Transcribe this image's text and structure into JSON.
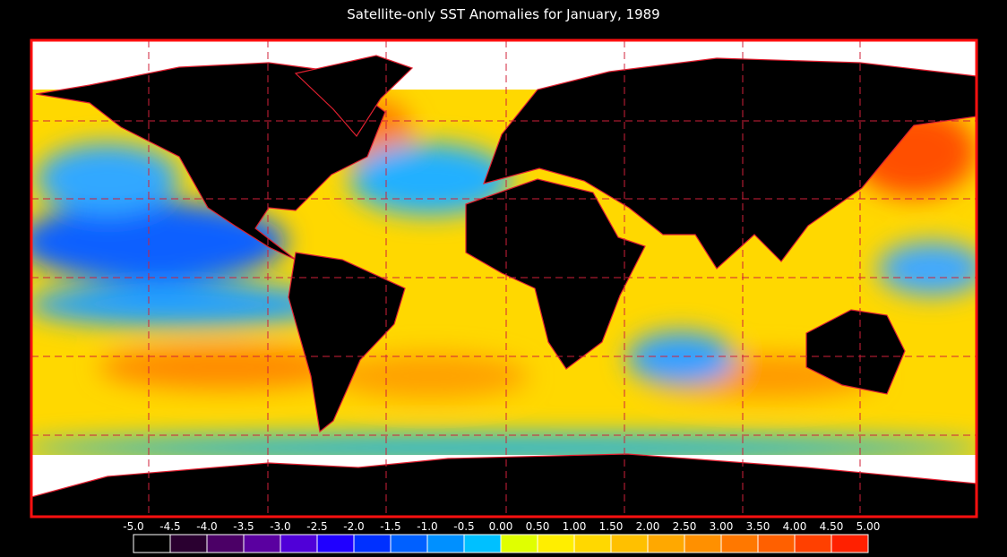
{
  "map": {
    "title": "Satellite-only SST Anomalies for January, 1989",
    "colorbar": {
      "ticks": [
        {
          "value": -5.0,
          "label": "-5.0"
        },
        -4.5,
        {
          "value": -4.0,
          "label": "-4.0"
        },
        -3.5,
        {
          "value": -3.0,
          "label": "-3.0"
        },
        -2.5,
        {
          "value": -2.0,
          "label": "-2.0"
        },
        -1.5,
        {
          "value": -1.0,
          "label": "-1.0"
        },
        -0.5,
        {
          "value": 0.0,
          "label": "0.00"
        },
        {
          "value": 0.5,
          "label": "0.50"
        },
        {
          "value": 1.0,
          "label": "1.00"
        },
        {
          "value": 1.5,
          "label": "1.50"
        },
        {
          "value": 2.0,
          "label": "2.00"
        },
        {
          "value": 2.5,
          "label": "2.50"
        },
        {
          "value": 3.0,
          "label": "3.00"
        },
        {
          "value": 3.5,
          "label": "3.50"
        },
        {
          "value": 4.0,
          "label": "4.00"
        },
        {
          "value": 4.5,
          "label": "4.50"
        },
        {
          "value": 5.0,
          "label": "5.00"
        }
      ],
      "colors": [
        "#000000",
        "#2a0030",
        "#4b0066",
        "#5a00a0",
        "#5000d8",
        "#2000ff",
        "#0030ff",
        "#0060ff",
        "#0090ff",
        "#00c0ff",
        "#e0ff00",
        "#ffee00",
        "#ffd800",
        "#ffc000",
        "#ffa800",
        "#ff9000",
        "#ff7800",
        "#ff6000",
        "#ff4000",
        "#ff2000"
      ]
    }
  }
}
